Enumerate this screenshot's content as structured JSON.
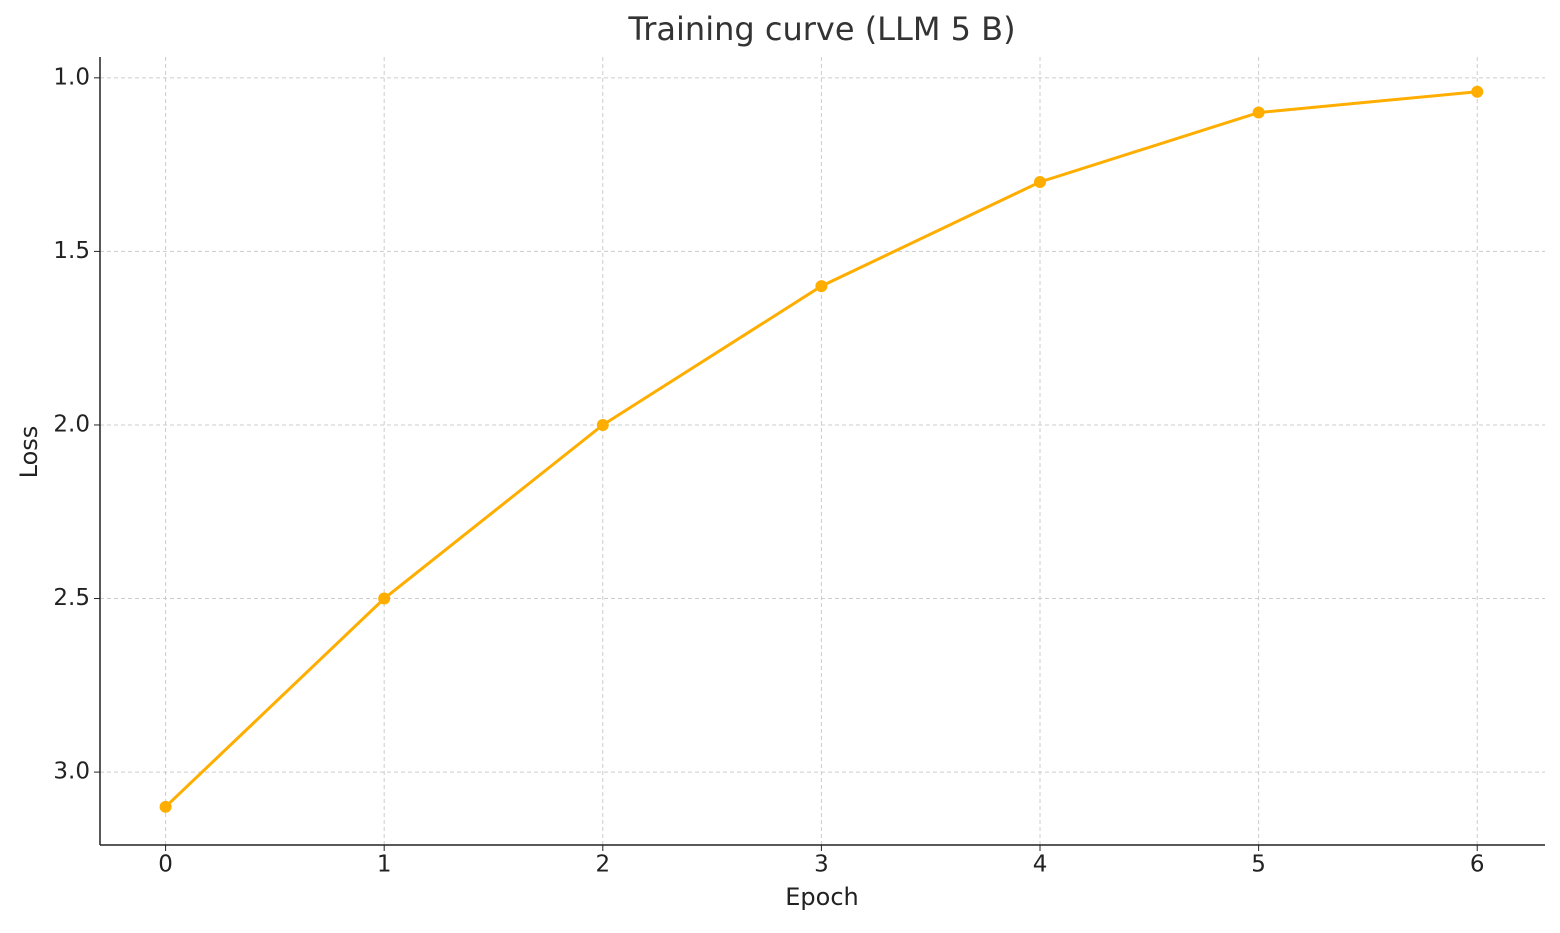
{
  "chart_data": {
    "type": "line",
    "title": "Training curve (LLM 5 B)",
    "x_label": "Epoch",
    "y_label": "Loss",
    "x": [
      0,
      1,
      2,
      3,
      4,
      5,
      6
    ],
    "series": [
      {
        "name": "Loss",
        "color": "#ffae00",
        "values": [
          3.1,
          2.5,
          2.0,
          1.6,
          1.3,
          1.1,
          1.04
        ]
      }
    ],
    "xlim": [
      -0.3,
      6.31
    ],
    "xticks": [
      0,
      1,
      2,
      3,
      4,
      5,
      6
    ],
    "ylim": [
      3.21,
      0.94
    ],
    "yticks": [
      {
        "value": 1,
        "label": "1.0"
      },
      1.5,
      {
        "value": 2,
        "label": "2.0"
      },
      2.5,
      {
        "value": 3,
        "label": "3.0"
      }
    ],
    "y_inverted": true,
    "grid": true
  }
}
